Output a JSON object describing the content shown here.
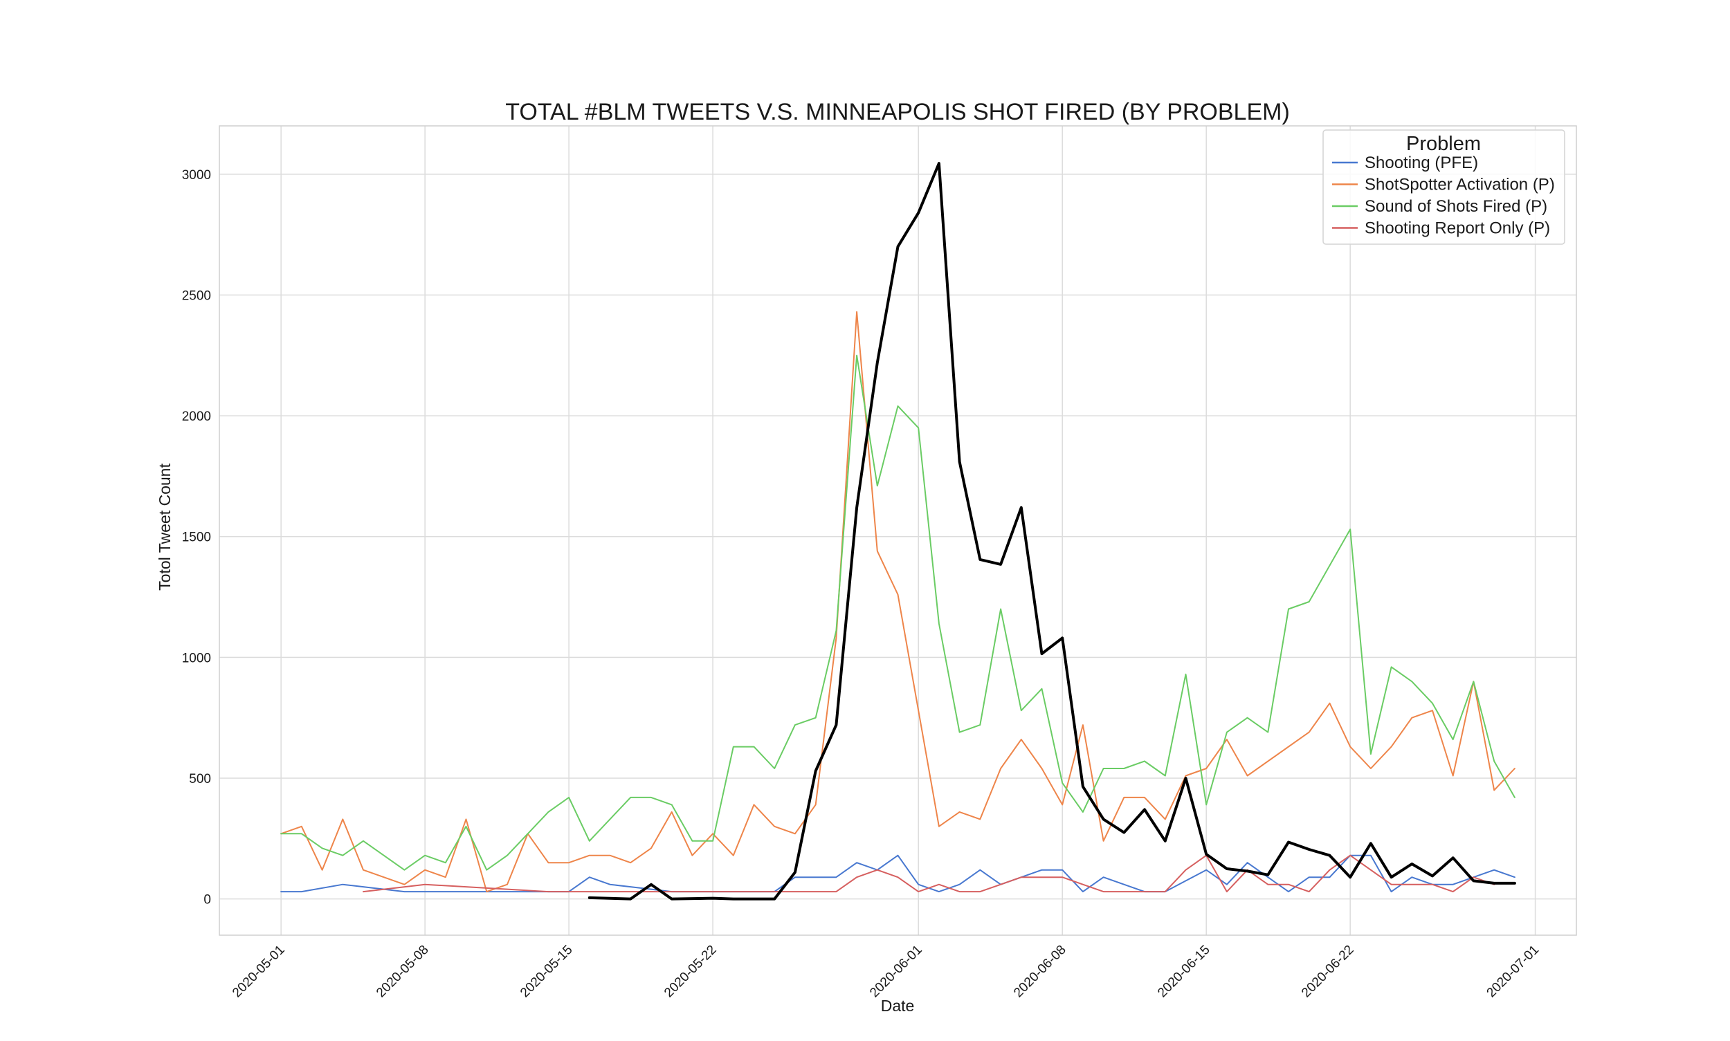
{
  "chart_data": {
    "type": "line",
    "title": "TOTAL #BLM TWEETS V.S. MINNEAPOLIS SHOT FIRED (BY PROBLEM)",
    "xlabel": "Date",
    "ylabel": "Totol Tweet Count",
    "x_ticks": [
      "2020-05-01",
      "2020-05-08",
      "2020-05-15",
      "2020-05-22",
      "2020-06-01",
      "2020-06-08",
      "2020-06-15",
      "2020-06-22",
      "2020-07-01"
    ],
    "y_ticks": [
      0,
      500,
      1000,
      1500,
      2000,
      2500,
      3000
    ],
    "xlim": [
      "2020-04-28",
      "2020-07-03"
    ],
    "ylim": [
      -150,
      3200
    ],
    "grid": true,
    "legend_title": "Problem",
    "legend_position": "top-right",
    "series": [
      {
        "name": "Shooting (PFE)",
        "color": "#4878d0",
        "width": 2,
        "in_legend": true,
        "x": [
          "2020-05-01",
          "2020-05-02",
          "2020-05-04",
          "2020-05-05",
          "2020-05-06",
          "2020-05-07",
          "2020-05-08",
          "2020-05-09",
          "2020-05-10",
          "2020-05-11",
          "2020-05-12",
          "2020-05-13",
          "2020-05-14",
          "2020-05-15",
          "2020-05-16",
          "2020-05-17",
          "2020-05-18",
          "2020-05-19",
          "2020-05-20",
          "2020-05-21",
          "2020-05-22",
          "2020-05-23",
          "2020-05-24",
          "2020-05-25",
          "2020-05-26",
          "2020-05-27",
          "2020-05-28",
          "2020-05-29",
          "2020-05-30",
          "2020-05-31",
          "2020-06-01",
          "2020-06-02",
          "2020-06-03",
          "2020-06-04",
          "2020-06-05",
          "2020-06-06",
          "2020-06-07",
          "2020-06-08",
          "2020-06-09",
          "2020-06-10",
          "2020-06-11",
          "2020-06-12",
          "2020-06-13",
          "2020-06-14",
          "2020-06-15",
          "2020-06-16",
          "2020-06-17",
          "2020-06-18",
          "2020-06-19",
          "2020-06-20",
          "2020-06-21",
          "2020-06-22",
          "2020-06-23",
          "2020-06-24",
          "2020-06-25",
          "2020-06-26",
          "2020-06-27",
          "2020-06-28",
          "2020-06-29",
          "2020-06-30"
        ],
        "values": [
          30,
          30,
          60,
          50,
          40,
          30,
          30,
          30,
          30,
          30,
          30,
          30,
          30,
          30,
          90,
          60,
          50,
          40,
          30,
          30,
          30,
          30,
          30,
          30,
          90,
          90,
          90,
          150,
          120,
          180,
          60,
          30,
          60,
          120,
          60,
          90,
          120,
          120,
          30,
          90,
          60,
          30,
          30,
          75,
          120,
          60,
          150,
          90,
          30,
          90,
          90,
          180,
          180,
          30,
          90,
          60,
          60,
          90,
          120,
          90
        ]
      },
      {
        "name": "ShotSpotter Activation (P)",
        "color": "#ee854a",
        "width": 2,
        "in_legend": true,
        "x": [
          "2020-05-01",
          "2020-05-02",
          "2020-05-03",
          "2020-05-04",
          "2020-05-05",
          "2020-05-07",
          "2020-05-08",
          "2020-05-09",
          "2020-05-10",
          "2020-05-11",
          "2020-05-12",
          "2020-05-13",
          "2020-05-14",
          "2020-05-15",
          "2020-05-16",
          "2020-05-17",
          "2020-05-18",
          "2020-05-19",
          "2020-05-20",
          "2020-05-21",
          "2020-05-22",
          "2020-05-23",
          "2020-05-24",
          "2020-05-25",
          "2020-05-26",
          "2020-05-27",
          "2020-05-28",
          "2020-05-29",
          "2020-05-30",
          "2020-05-31",
          "2020-06-02",
          "2020-06-03",
          "2020-06-04",
          "2020-06-05",
          "2020-06-06",
          "2020-06-07",
          "2020-06-08",
          "2020-06-09",
          "2020-06-10",
          "2020-06-11",
          "2020-06-12",
          "2020-06-13",
          "2020-06-14",
          "2020-06-15",
          "2020-06-16",
          "2020-06-17",
          "2020-06-20",
          "2020-06-21",
          "2020-06-22",
          "2020-06-23",
          "2020-06-24",
          "2020-06-25",
          "2020-06-26",
          "2020-06-27",
          "2020-06-28",
          "2020-06-29",
          "2020-06-30"
        ],
        "values": [
          270,
          300,
          120,
          330,
          120,
          60,
          120,
          90,
          330,
          30,
          60,
          270,
          150,
          150,
          180,
          180,
          150,
          210,
          360,
          180,
          270,
          180,
          390,
          300,
          270,
          390,
          1080,
          2430,
          1440,
          1260,
          300,
          360,
          330,
          540,
          660,
          540,
          390,
          720,
          240,
          420,
          420,
          330,
          510,
          540,
          660,
          510,
          690,
          810,
          630,
          540,
          630,
          750,
          780,
          510,
          900,
          450,
          540
        ]
      },
      {
        "name": "Sound of Shots Fired (P)",
        "color": "#6acc64",
        "width": 2,
        "in_legend": true,
        "x": [
          "2020-05-01",
          "2020-05-02",
          "2020-05-03",
          "2020-05-04",
          "2020-05-05",
          "2020-05-07",
          "2020-05-08",
          "2020-05-09",
          "2020-05-10",
          "2020-05-11",
          "2020-05-12",
          "2020-05-13",
          "2020-05-14",
          "2020-05-15",
          "2020-05-16",
          "2020-05-18",
          "2020-05-19",
          "2020-05-20",
          "2020-05-21",
          "2020-05-22",
          "2020-05-23",
          "2020-05-24",
          "2020-05-25",
          "2020-05-26",
          "2020-05-27",
          "2020-05-28",
          "2020-05-29",
          "2020-05-30",
          "2020-05-31",
          "2020-06-01",
          "2020-06-02",
          "2020-06-03",
          "2020-06-04",
          "2020-06-05",
          "2020-06-06",
          "2020-06-07",
          "2020-06-08",
          "2020-06-09",
          "2020-06-10",
          "2020-06-11",
          "2020-06-12",
          "2020-06-13",
          "2020-06-14",
          "2020-06-15",
          "2020-06-16",
          "2020-06-17",
          "2020-06-18",
          "2020-06-19",
          "2020-06-20",
          "2020-06-22",
          "2020-06-23",
          "2020-06-24",
          "2020-06-25",
          "2020-06-26",
          "2020-06-27",
          "2020-06-28",
          "2020-06-29",
          "2020-06-30"
        ],
        "values": [
          270,
          270,
          210,
          180,
          240,
          120,
          180,
          150,
          300,
          120,
          180,
          270,
          360,
          420,
          240,
          420,
          420,
          390,
          240,
          240,
          630,
          630,
          540,
          720,
          750,
          1110,
          2250,
          1710,
          2040,
          1950,
          1140,
          690,
          720,
          1200,
          780,
          870,
          480,
          360,
          540,
          540,
          570,
          510,
          930,
          390,
          690,
          750,
          690,
          1200,
          1230,
          1530,
          600,
          960,
          900,
          810,
          660,
          900,
          570,
          420
        ]
      },
      {
        "name": "Shooting Report Only (P)",
        "color": "#d65f5f",
        "width": 2,
        "in_legend": true,
        "x": [
          "2020-05-05",
          "2020-05-08",
          "2020-05-14",
          "2020-05-28",
          "2020-05-29",
          "2020-05-30",
          "2020-05-31",
          "2020-06-01",
          "2020-06-02",
          "2020-06-03",
          "2020-06-04",
          "2020-06-05",
          "2020-06-06",
          "2020-06-07",
          "2020-06-08",
          "2020-06-09",
          "2020-06-10",
          "2020-06-11",
          "2020-06-12",
          "2020-06-13",
          "2020-06-14",
          "2020-06-15",
          "2020-06-16",
          "2020-06-17",
          "2020-06-18",
          "2020-06-19",
          "2020-06-20",
          "2020-06-21",
          "2020-06-22",
          "2020-06-23",
          "2020-06-24",
          "2020-06-25",
          "2020-06-26",
          "2020-06-27",
          "2020-06-28",
          "2020-06-29"
        ],
        "values": [
          30,
          60,
          30,
          30,
          90,
          120,
          90,
          30,
          60,
          30,
          30,
          60,
          90,
          90,
          90,
          60,
          30,
          30,
          30,
          30,
          120,
          180,
          30,
          120,
          60,
          60,
          30,
          120,
          180,
          120,
          60,
          60,
          60,
          30,
          90,
          60
        ]
      },
      {
        "name": "Total #BLM Tweets",
        "color": "#000000",
        "width": 4,
        "in_legend": false,
        "x": [
          "2020-05-16",
          "2020-05-18",
          "2020-05-19",
          "2020-05-20",
          "2020-05-22",
          "2020-05-23",
          "2020-05-25",
          "2020-05-26",
          "2020-05-27",
          "2020-05-28",
          "2020-05-29",
          "2020-05-30",
          "2020-05-31",
          "2020-06-01",
          "2020-06-02",
          "2020-06-03",
          "2020-06-04",
          "2020-06-05",
          "2020-06-06",
          "2020-06-07",
          "2020-06-08",
          "2020-06-09",
          "2020-06-10",
          "2020-06-11",
          "2020-06-12",
          "2020-06-13",
          "2020-06-14",
          "2020-06-15",
          "2020-06-16",
          "2020-06-17",
          "2020-06-18",
          "2020-06-19",
          "2020-06-20",
          "2020-06-21",
          "2020-06-22",
          "2020-06-23",
          "2020-06-24",
          "2020-06-25",
          "2020-06-26",
          "2020-06-27",
          "2020-06-28",
          "2020-06-29",
          "2020-06-30"
        ],
        "values": [
          5,
          0,
          60,
          0,
          3,
          0,
          0,
          110,
          530,
          720,
          1620,
          2220,
          2700,
          2840,
          3045,
          1810,
          1405,
          1385,
          1620,
          1015,
          1080,
          465,
          330,
          275,
          370,
          240,
          500,
          185,
          125,
          115,
          100,
          235,
          205,
          180,
          90,
          230,
          90,
          145,
          95,
          170,
          75,
          65,
          65
        ]
      }
    ]
  }
}
